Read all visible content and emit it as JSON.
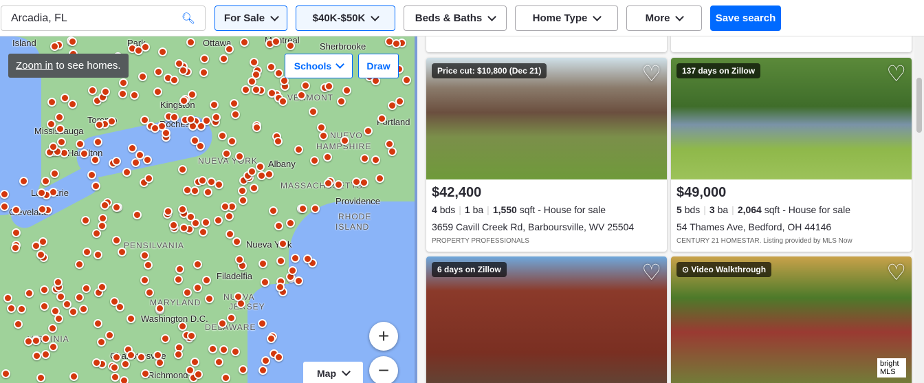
{
  "search": {
    "value": "Arcadia, FL"
  },
  "filters": [
    {
      "label": "For Sale",
      "active": true
    },
    {
      "label": "$40K-$50K",
      "active": true
    },
    {
      "label": "Beds & Baths"
    },
    {
      "label": "Home Type"
    },
    {
      "label": "More"
    }
  ],
  "save_label": "Save search",
  "map": {
    "tooltip_link": "Zoom in",
    "tooltip_text": " to see homes.",
    "schools": "Schools",
    "draw": "Draw",
    "zoom_in": "+",
    "zoom_out": "−",
    "map_type": "Map",
    "labels": [
      {
        "t": "Island"
      },
      {
        "t": "Park"
      },
      {
        "t": "Ottawa"
      },
      {
        "t": "Montreal"
      },
      {
        "t": "Sherbrooke"
      },
      {
        "t": "Kingston"
      },
      {
        "t": "VERMONT",
        "state": true
      },
      {
        "t": "Toronto"
      },
      {
        "t": "Mississauga"
      },
      {
        "t": "Rochester"
      },
      {
        "t": "Portland"
      },
      {
        "t": "Hamilton"
      },
      {
        "t": "NUEVO",
        "state": true
      },
      {
        "t": "HAMPSHIRE",
        "state": true
      },
      {
        "t": "Albany"
      },
      {
        "t": "MASSACHUSETTS",
        "state": true
      },
      {
        "t": "Lake Erie"
      },
      {
        "t": "Cleveland"
      },
      {
        "t": "Providence"
      },
      {
        "t": "RHODE",
        "state": true
      },
      {
        "t": "ISLAND",
        "state": true
      },
      {
        "t": "PENSILVANIA",
        "state": true
      },
      {
        "t": "Nueva York"
      },
      {
        "t": "Filadelfia"
      },
      {
        "t": "MARYLAND",
        "state": true
      },
      {
        "t": "NUEVA",
        "state": true
      },
      {
        "t": "JERSEY",
        "state": true
      },
      {
        "t": "Washington D.C."
      },
      {
        "t": "DELAWARE",
        "state": true
      },
      {
        "t": "VIRGINIA",
        "state": true
      },
      {
        "t": "Charlottesville"
      },
      {
        "t": "Richmond"
      },
      {
        "t": "NUEVA YORK",
        "state": true
      }
    ]
  },
  "listings": [
    {
      "badge": "Price cut: $10,800 (Dec 21)",
      "price": "$42,400",
      "beds": "4",
      "beds_unit": "bds",
      "baths": "1",
      "baths_unit": "ba",
      "sqft": "1,550",
      "sqft_unit": "sqft",
      "type": "- House for sale",
      "address": "3659 Cavill Creek Rd, Barboursville, WV 25504",
      "broker": "PROPERTY PROFESSIONALS"
    },
    {
      "badge": "137 days on Zillow",
      "price": "$49,000",
      "beds": "5",
      "beds_unit": "bds",
      "baths": "3",
      "baths_unit": "ba",
      "sqft": "2,064",
      "sqft_unit": "sqft",
      "type": "- House for sale",
      "address": "54 Thames Ave, Bedford, OH 44146",
      "broker": "CENTURY 21 HOMESTAR. Listing provided by MLS Now"
    },
    {
      "badge": "6 days on Zillow"
    },
    {
      "badge": "Video Walkthrough",
      "logo": "bright MLS"
    }
  ],
  "colors": {
    "accent": "#006aff",
    "marker": "#d4380d"
  }
}
